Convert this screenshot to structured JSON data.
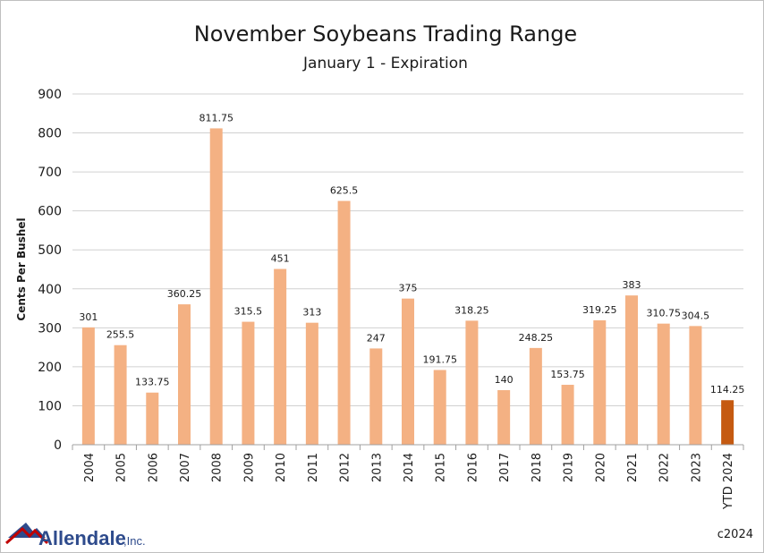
{
  "chart_data": {
    "type": "bar",
    "title": "November Soybeans Trading Range",
    "subtitle": "January 1 - Expiration",
    "ylabel": "Cents Per Bushel",
    "xlabel": "",
    "ylim": [
      0,
      900
    ],
    "yticks": [
      0,
      100,
      200,
      300,
      400,
      500,
      600,
      700,
      800,
      900
    ],
    "grid": true,
    "categories": [
      "2004",
      "2005",
      "2006",
      "2007",
      "2008",
      "2009",
      "2010",
      "2011",
      "2012",
      "2013",
      "2014",
      "2015",
      "2016",
      "2017",
      "2018",
      "2019",
      "2020",
      "2021",
      "2022",
      "2023",
      "YTD 2024"
    ],
    "values": [
      301,
      255.5,
      133.75,
      360.25,
      811.75,
      315.5,
      451,
      313,
      625.5,
      247,
      375,
      191.75,
      318.25,
      140,
      248.25,
      153.75,
      319.25,
      383,
      310.75,
      304.5,
      114.25
    ],
    "data_labels": [
      "301",
      "255.5",
      "133.75",
      "360.25",
      "811.75",
      "315.5",
      "451",
      "313",
      "625.5",
      "247",
      "375",
      "191.75",
      "318.25",
      "140",
      "248.25",
      "153.75",
      "319.25",
      "383",
      "310.75",
      "304.5",
      "114.25"
    ],
    "colors": {
      "default": "#f4b183",
      "highlight": "#c55a11"
    },
    "highlight_category": "YTD 2024"
  },
  "footer": {
    "logo_name": "Allendale",
    "logo_suffix": ",Inc.",
    "copyright": "c2024"
  },
  "icons": {
    "logo": "allendale-mountain-logo"
  }
}
